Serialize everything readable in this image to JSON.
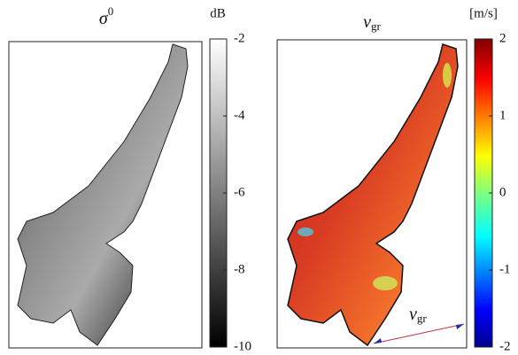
{
  "panels": [
    {
      "title": "σ",
      "title_superscript": "0",
      "colorbar": {
        "label": "dB",
        "lim": [
          -10,
          -2
        ],
        "ticks": [
          -2,
          -4,
          -6,
          -8,
          -10
        ]
      }
    },
    {
      "title": "v",
      "title_subscript": "gr",
      "colorbar": {
        "label": "[m/s]",
        "lim": [
          -2,
          2
        ],
        "ticks": [
          2,
          1,
          0,
          -1,
          -2
        ]
      }
    }
  ],
  "annotation": {
    "text": "v",
    "subscript": "gr"
  }
}
